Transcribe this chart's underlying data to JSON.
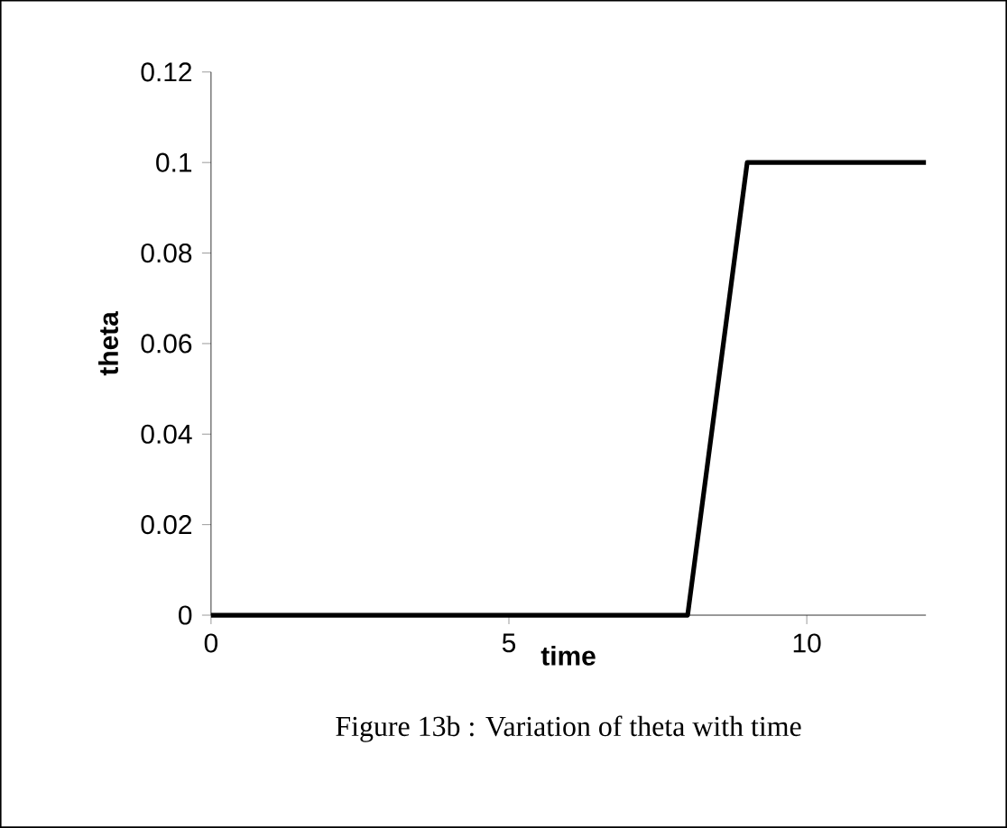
{
  "chart_data": {
    "type": "line",
    "xlabel": "time",
    "ylabel": "theta",
    "annotations": [
      "Figure 13b  : Variation of theta with time"
    ],
    "x": [
      0,
      8,
      9,
      12
    ],
    "series": [
      {
        "color": "#000000",
        "values": [
          0,
          0,
          0.1,
          0.1
        ]
      }
    ],
    "xlim": [
      0,
      12
    ],
    "xticks": [
      0,
      5,
      10
    ],
    "ylim": [
      0,
      0.12
    ],
    "yticks": [
      0,
      0.02,
      0.04,
      0.06,
      0.08,
      0.1,
      0.12
    ],
    "marker": "none",
    "line_style": "solid"
  }
}
